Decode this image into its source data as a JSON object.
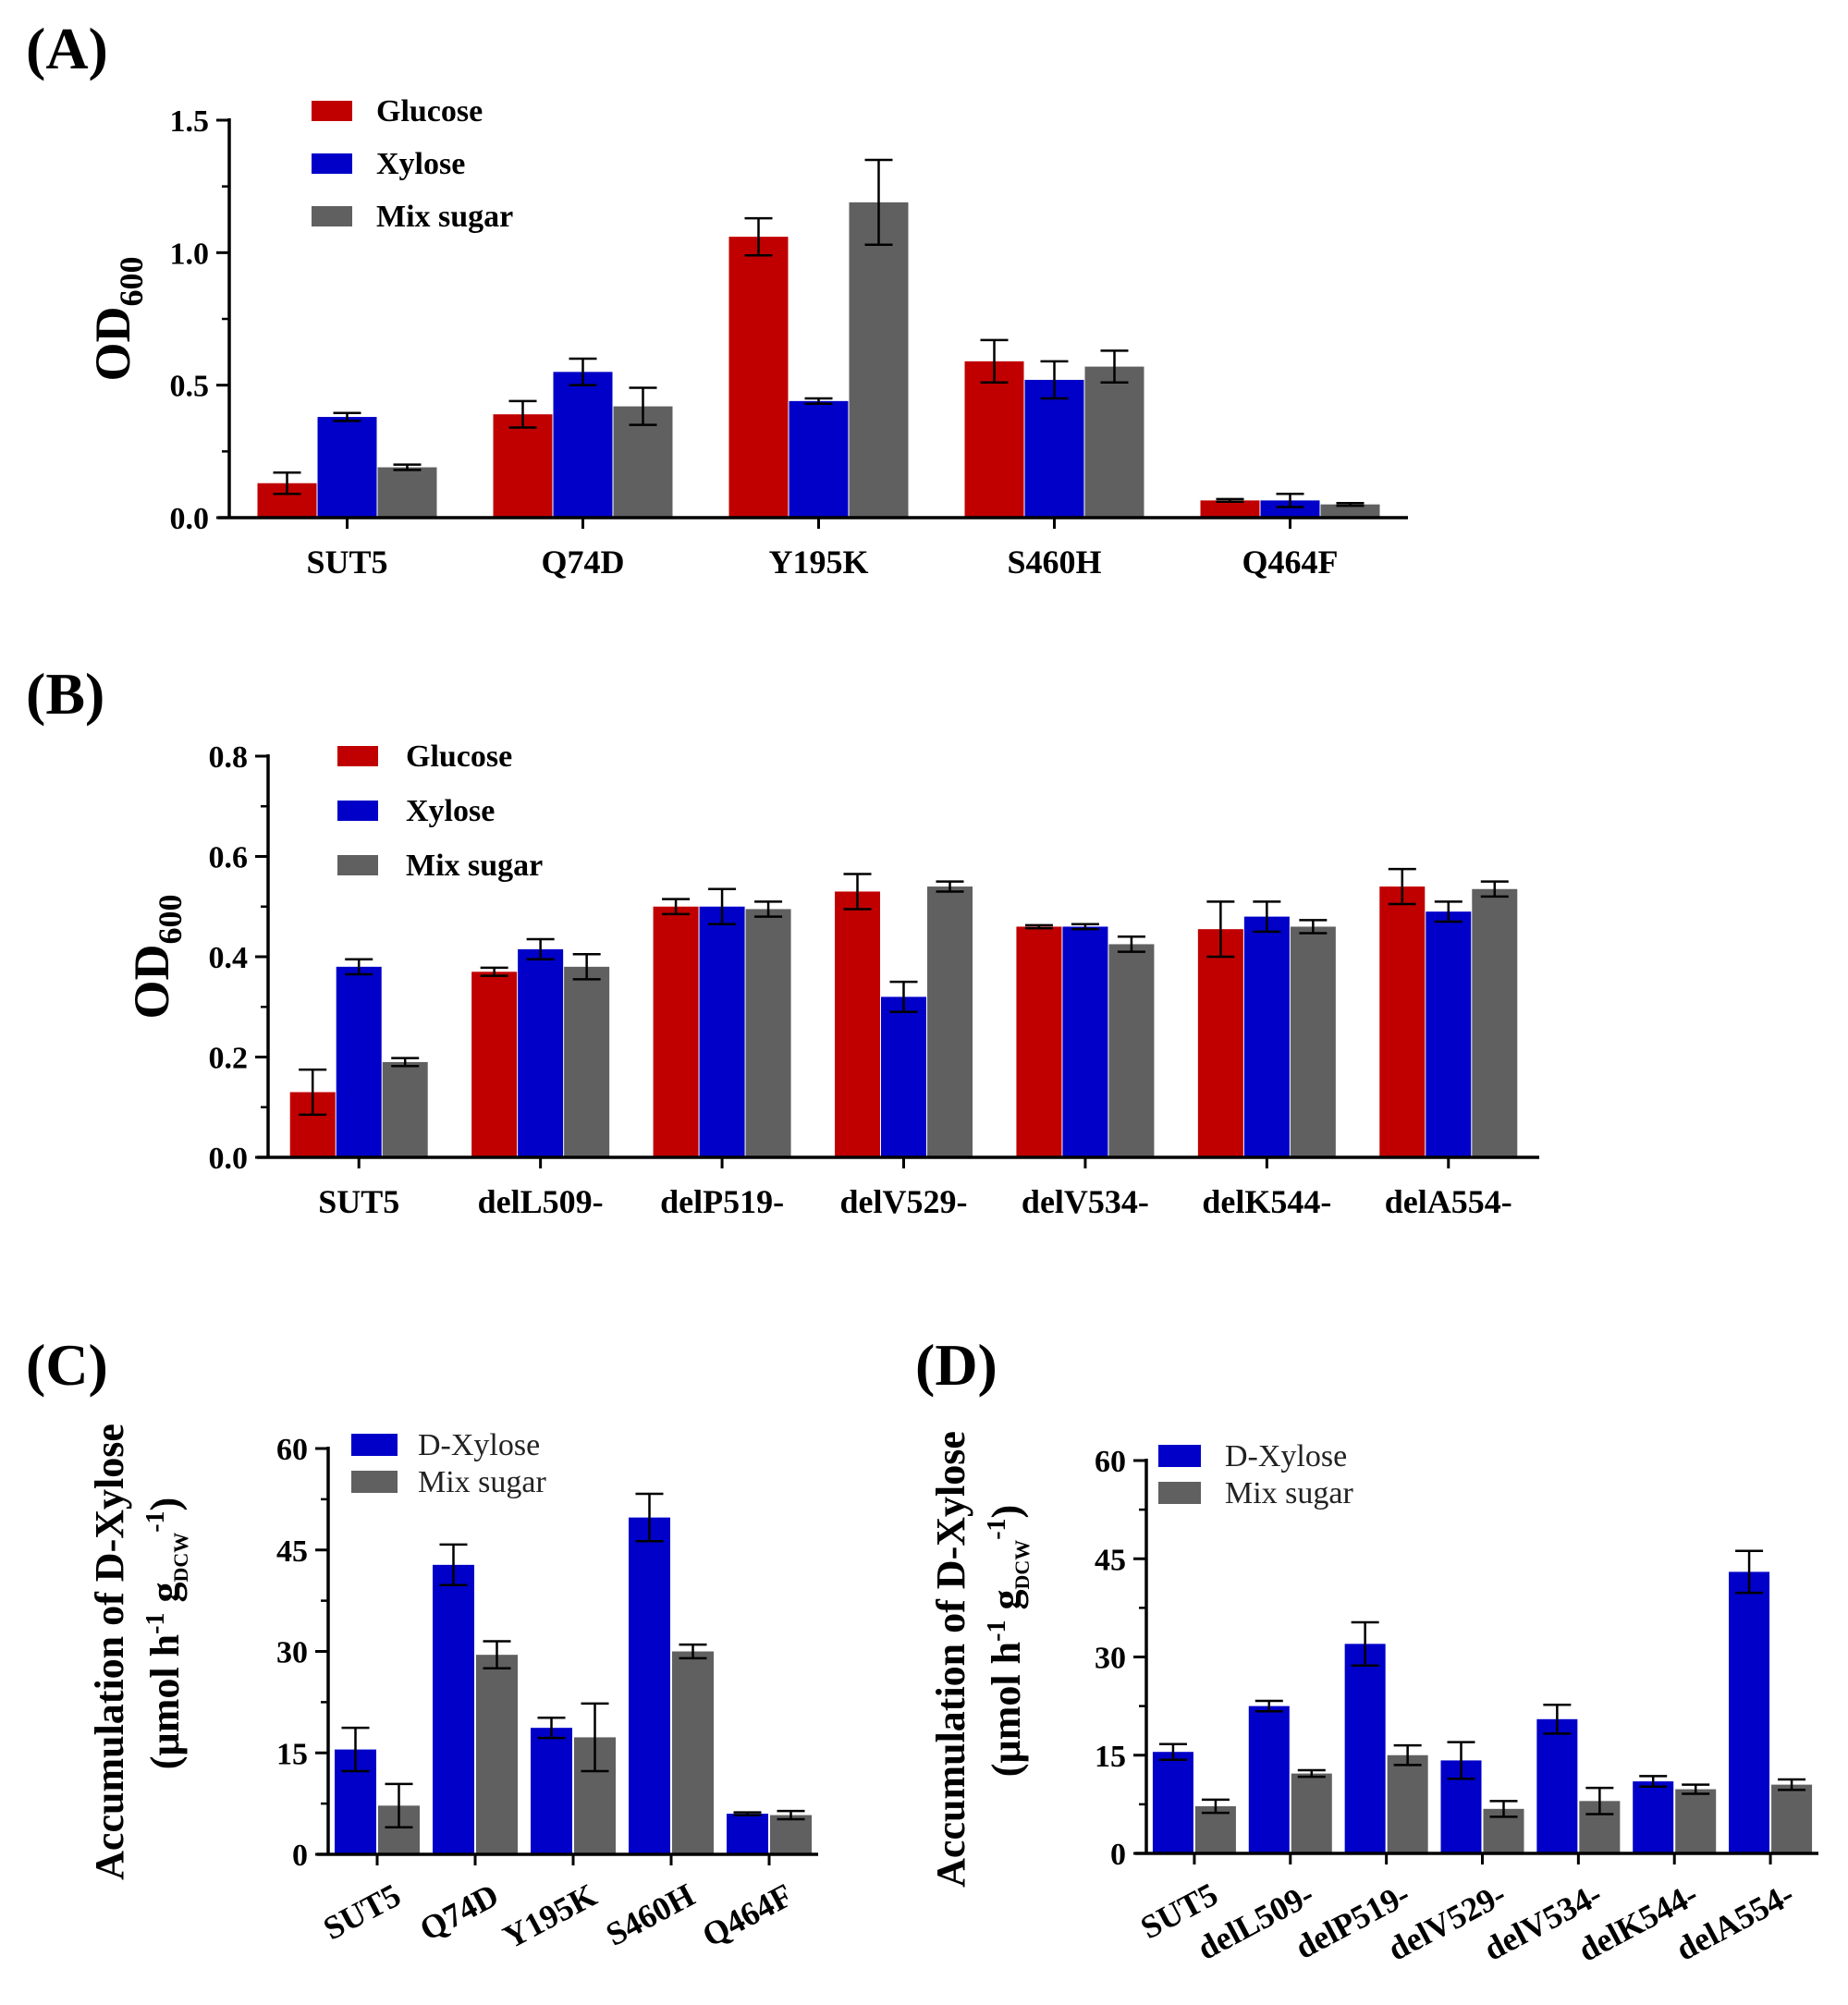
{
  "colors": {
    "glucose": "#c00000",
    "xylose": "#0000c8",
    "mix": "#606060",
    "axis": "#000000"
  },
  "panel_labels": [
    "(A)",
    "(B)",
    "(C)",
    "(D)"
  ],
  "chart_data": [
    {
      "id": "A",
      "type": "bar",
      "title": "",
      "xlabel": "",
      "ylabel": "OD",
      "ylabel_sub": "600",
      "ylim": [
        0,
        1.5
      ],
      "yticks": [
        "0.0",
        "0.5",
        "1.0",
        "1.5"
      ],
      "categories": [
        "SUT5",
        "Q74D",
        "Y195K",
        "S460H",
        "Q464F"
      ],
      "series": [
        {
          "name": "Glucose",
          "color_key": "glucose",
          "values": [
            0.13,
            0.39,
            1.06,
            0.59,
            0.065
          ],
          "errors": [
            0.04,
            0.05,
            0.07,
            0.08,
            0.005
          ]
        },
        {
          "name": "Xylose",
          "color_key": "xylose",
          "values": [
            0.38,
            0.55,
            0.44,
            0.52,
            0.065
          ],
          "errors": [
            0.015,
            0.05,
            0.01,
            0.07,
            0.025
          ]
        },
        {
          "name": "Mix sugar",
          "color_key": "mix",
          "values": [
            0.19,
            0.42,
            1.19,
            0.57,
            0.05
          ],
          "errors": [
            0.01,
            0.07,
            0.16,
            0.06,
            0.005
          ]
        }
      ],
      "legend": [
        "Glucose",
        "Xylose",
        "Mix sugar"
      ],
      "legend_position": "top-left",
      "grid": false
    },
    {
      "id": "B",
      "type": "bar",
      "title": "",
      "xlabel": "",
      "ylabel": "OD",
      "ylabel_sub": "600",
      "ylim": [
        0,
        0.8
      ],
      "yticks": [
        "0.0",
        "0.2",
        "0.4",
        "0.6",
        "0.8"
      ],
      "categories": [
        "SUT5",
        "delL509-",
        "delP519-",
        "delV529-",
        "delV534-",
        "delK544-",
        "delA554-"
      ],
      "series": [
        {
          "name": "Glucose",
          "color_key": "glucose",
          "values": [
            0.13,
            0.37,
            0.5,
            0.53,
            0.46,
            0.455,
            0.54
          ],
          "errors": [
            0.045,
            0.008,
            0.015,
            0.035,
            0.003,
            0.055,
            0.035
          ]
        },
        {
          "name": "Xylose",
          "color_key": "xylose",
          "values": [
            0.38,
            0.415,
            0.5,
            0.32,
            0.46,
            0.48,
            0.49
          ],
          "errors": [
            0.015,
            0.02,
            0.035,
            0.03,
            0.005,
            0.03,
            0.02
          ]
        },
        {
          "name": "Mix sugar",
          "color_key": "mix",
          "values": [
            0.19,
            0.38,
            0.495,
            0.54,
            0.425,
            0.46,
            0.535
          ],
          "errors": [
            0.008,
            0.025,
            0.015,
            0.01,
            0.015,
            0.013,
            0.015
          ]
        }
      ],
      "legend": [
        "Glucose",
        "Xylose",
        "Mix sugar"
      ],
      "legend_position": "top-left",
      "grid": false
    },
    {
      "id": "C",
      "type": "bar",
      "title": "",
      "xlabel": "",
      "ylabel": "Accumulation of D-Xylose",
      "ylabel_units": {
        "open": "(µmol h",
        "exp": "-1",
        "mid": " g",
        "sub": "DCW",
        "exp2": "-1",
        "close": ")"
      },
      "ylim": [
        0,
        60
      ],
      "yticks": [
        "0",
        "15",
        "30",
        "45",
        "60"
      ],
      "categories": [
        "SUT5",
        "Q74D",
        "Y195K",
        "S460H",
        "Q464F"
      ],
      "series": [
        {
          "name": "D-Xylose",
          "color_key": "xylose",
          "values": [
            15.5,
            42.8,
            18.7,
            49.8,
            6.0
          ],
          "errors": [
            3.2,
            3.0,
            1.5,
            3.5,
            0.2
          ]
        },
        {
          "name": "Mix sugar",
          "color_key": "mix",
          "values": [
            7.2,
            29.5,
            17.3,
            30.0,
            5.8
          ],
          "errors": [
            3.2,
            2.0,
            5.0,
            1.0,
            0.6
          ]
        }
      ],
      "legend": [
        "D-Xylose",
        "Mix sugar"
      ],
      "legend_position": "top-left",
      "grid": false
    },
    {
      "id": "D",
      "type": "bar",
      "title": "",
      "xlabel": "",
      "ylabel": "Accumulation of D-Xylose",
      "ylabel_units": {
        "open": "(µmol h",
        "exp": "-1",
        "mid": " g",
        "sub": "DCW",
        "exp2": "-1",
        "close": ")"
      },
      "ylim": [
        0,
        60
      ],
      "yticks": [
        "0",
        "15",
        "30",
        "45",
        "60"
      ],
      "categories": [
        "SUT5",
        "delL509-",
        "delP519-",
        "delV529-",
        "delV534-",
        "delK544-",
        "delA554-"
      ],
      "series": [
        {
          "name": "D-Xylose",
          "color_key": "xylose",
          "values": [
            15.5,
            22.5,
            32.0,
            14.2,
            20.5,
            11.0,
            43.0
          ],
          "errors": [
            1.2,
            0.8,
            3.3,
            2.8,
            2.2,
            0.8,
            3.2
          ]
        },
        {
          "name": "Mix sugar",
          "color_key": "mix",
          "values": [
            7.2,
            12.2,
            15.0,
            6.8,
            8.0,
            9.8,
            10.5
          ],
          "errors": [
            1.0,
            0.5,
            1.5,
            1.2,
            2.0,
            0.7,
            0.8
          ]
        }
      ],
      "legend": [
        "D-Xylose",
        "Mix sugar"
      ],
      "legend_position": "top-left",
      "grid": false
    }
  ]
}
